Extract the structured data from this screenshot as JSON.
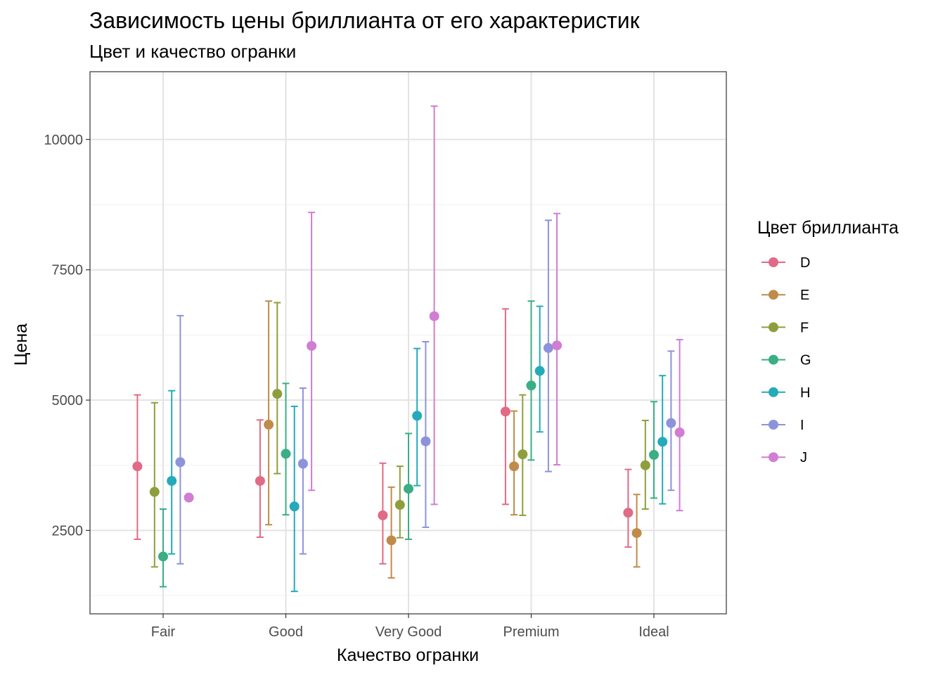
{
  "chart_data": {
    "type": "errorbar",
    "title": "Зависимость цены бриллианта от его характеристик",
    "subtitle": "Цвет и качество огранки",
    "xlabel": "Качество огранки",
    "ylabel": "Цена",
    "categories": [
      "Fair",
      "Good",
      "Very Good",
      "Premium",
      "Ideal"
    ],
    "y_ticks": [
      2500,
      5000,
      7500,
      10000
    ],
    "ylim": [
      900,
      11300
    ],
    "grid": true,
    "legend": {
      "title": "Цвет бриллианта",
      "position": "right"
    },
    "series": [
      {
        "name": "D",
        "color": "#E16A86",
        "mean": [
          3730,
          3450,
          2790,
          4780,
          2840
        ],
        "lower": [
          2330,
          2370,
          1860,
          3000,
          2180
        ],
        "upper": [
          5100,
          4620,
          3790,
          6750,
          3670
        ]
      },
      {
        "name": "E",
        "color": "#C08B4A",
        "mean": [
          null,
          4530,
          2310,
          3730,
          2450
        ],
        "lower": [
          null,
          2610,
          1590,
          2800,
          1800
        ],
        "upper": [
          null,
          6900,
          3330,
          4790,
          3190
        ]
      },
      {
        "name": "F",
        "color": "#8F9E3C",
        "mean": [
          3240,
          5120,
          2990,
          3960,
          3750
        ],
        "lower": [
          1800,
          3590,
          2360,
          2790,
          2910
        ],
        "upper": [
          4950,
          6870,
          3730,
          5100,
          4610
        ]
      },
      {
        "name": "G",
        "color": "#3BAE83",
        "mean": [
          2000,
          3970,
          3300,
          5280,
          3950
        ],
        "lower": [
          1420,
          2800,
          2330,
          3850,
          3120
        ],
        "upper": [
          2910,
          5320,
          4360,
          6900,
          4970
        ]
      },
      {
        "name": "H",
        "color": "#25AAB9",
        "mean": [
          3450,
          2960,
          4700,
          5560,
          4200
        ],
        "lower": [
          2050,
          1330,
          3360,
          4390,
          3010
        ],
        "upper": [
          5180,
          4880,
          5990,
          6800,
          5470
        ]
      },
      {
        "name": "I",
        "color": "#8C93DB",
        "mean": [
          3810,
          3780,
          4210,
          6000,
          4560
        ],
        "lower": [
          1860,
          2050,
          2560,
          3630,
          3270
        ],
        "upper": [
          6620,
          5230,
          6120,
          8450,
          5940
        ]
      },
      {
        "name": "J",
        "color": "#D07DD3",
        "mean": [
          3130,
          6040,
          6610,
          6050,
          4380
        ],
        "lower": [
          null,
          3270,
          3000,
          3760,
          2880
        ],
        "upper": [
          null,
          8600,
          10640,
          8580,
          6160
        ]
      }
    ]
  }
}
